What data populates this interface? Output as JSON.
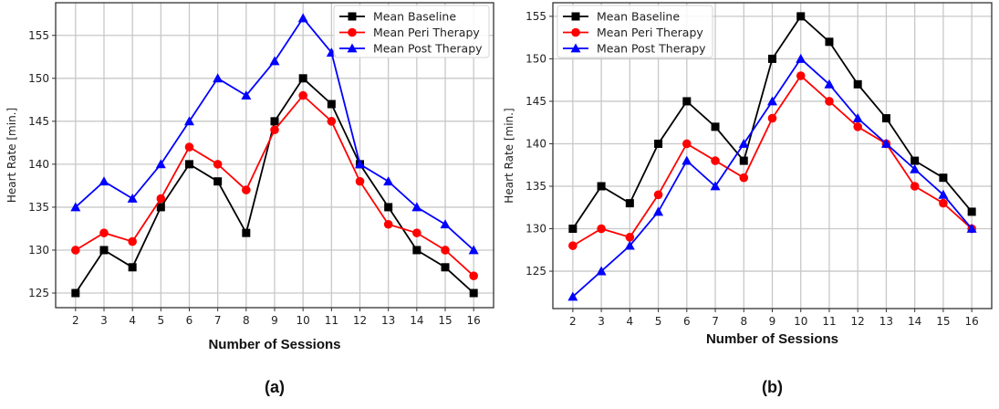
{
  "chart_data": [
    {
      "type": "line",
      "panel_label": "(a)",
      "xlabel": "Number of Sessions",
      "ylabel": "Heart Rate [min.]",
      "x": [
        2,
        3,
        4,
        5,
        6,
        7,
        8,
        9,
        10,
        11,
        12,
        13,
        14,
        15,
        16
      ],
      "xlim": [
        1.3,
        16.7
      ],
      "ylim": [
        123.3,
        158.8
      ],
      "yticks": [
        125,
        130,
        135,
        140,
        145,
        150,
        155
      ],
      "grid": true,
      "legend_position": "top-right",
      "series": [
        {
          "name": "Mean Baseline",
          "color": "#000000",
          "marker": "square",
          "values": [
            125,
            130,
            128,
            135,
            140,
            138,
            132,
            145,
            150,
            147,
            140,
            135,
            130,
            128,
            125
          ]
        },
        {
          "name": "Mean Peri Therapy",
          "color": "#ff0000",
          "marker": "circle",
          "values": [
            130,
            132,
            131,
            136,
            142,
            140,
            137,
            144,
            148,
            145,
            138,
            133,
            132,
            130,
            127
          ]
        },
        {
          "name": "Mean Post Therapy",
          "color": "#0000ff",
          "marker": "triangle",
          "values": [
            135,
            138,
            136,
            140,
            145,
            150,
            148,
            152,
            157,
            153,
            140,
            138,
            135,
            133,
            130
          ]
        }
      ]
    },
    {
      "type": "line",
      "panel_label": "(b)",
      "xlabel": "Number of Sessions",
      "ylabel": "Heart Rate [min.]",
      "x": [
        2,
        3,
        4,
        5,
        6,
        7,
        8,
        9,
        10,
        11,
        12,
        13,
        14,
        15,
        16
      ],
      "xlim": [
        1.3,
        16.7
      ],
      "ylim": [
        120.6,
        156.6
      ],
      "yticks": [
        125,
        130,
        135,
        140,
        145,
        150,
        155
      ],
      "grid": true,
      "legend_position": "top-left",
      "series": [
        {
          "name": "Mean Baseline",
          "color": "#000000",
          "marker": "square",
          "values": [
            130,
            135,
            133,
            140,
            145,
            142,
            138,
            150,
            155,
            152,
            147,
            143,
            138,
            136,
            132
          ]
        },
        {
          "name": "Mean Peri Therapy",
          "color": "#ff0000",
          "marker": "circle",
          "values": [
            128,
            130,
            129,
            134,
            140,
            138,
            136,
            143,
            148,
            145,
            142,
            140,
            135,
            133,
            130
          ]
        },
        {
          "name": "Mean Post Therapy",
          "color": "#0000ff",
          "marker": "triangle",
          "values": [
            122,
            125,
            128,
            132,
            138,
            135,
            140,
            145,
            150,
            147,
            143,
            140,
            137,
            134,
            130
          ]
        }
      ]
    }
  ]
}
